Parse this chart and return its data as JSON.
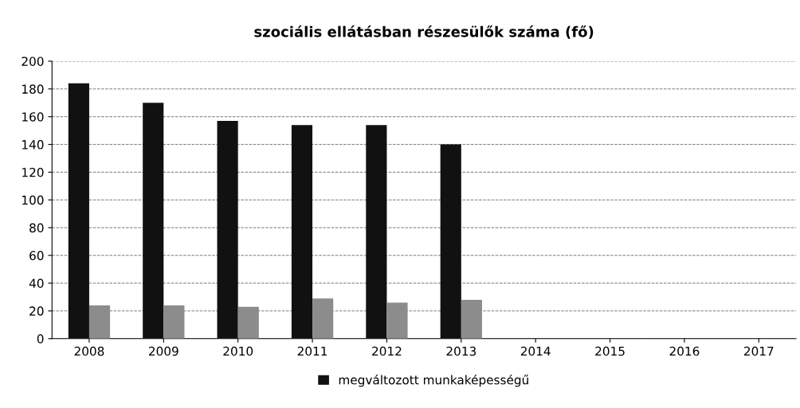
{
  "chart_data": {
    "type": "bar",
    "title": "szociális ellátásban részesülők száma (fő)",
    "categories": [
      "2008",
      "2009",
      "2010",
      "2011",
      "2012",
      "2013",
      "2014",
      "2015",
      "2016",
      "2017"
    ],
    "series": [
      {
        "name": "megváltozott munkaképességű",
        "color": "#111111",
        "values": [
          184,
          170,
          157,
          154,
          154,
          140,
          null,
          null,
          null,
          null
        ]
      },
      {
        "color": "#8c8c8c",
        "values": [
          24,
          24,
          23,
          29,
          26,
          28,
          null,
          null,
          null,
          null
        ]
      }
    ],
    "ylim": [
      0,
      200
    ],
    "yticks": [
      0,
      20,
      40,
      60,
      80,
      100,
      120,
      140,
      160,
      180,
      200
    ],
    "grid": "y",
    "legend": "bottom"
  }
}
